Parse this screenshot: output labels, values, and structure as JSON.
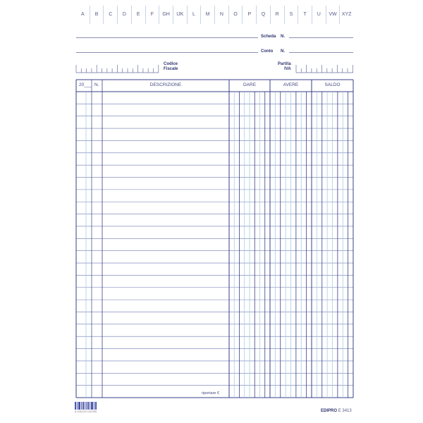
{
  "index_letters": [
    "A",
    "B",
    "C",
    "D",
    "E",
    "F",
    "GH",
    "IJK",
    "L",
    "M",
    "N",
    "O",
    "P",
    "Q",
    "R",
    "S",
    "T",
    "U",
    "VW",
    "XYZ"
  ],
  "fields": {
    "scheda_label": "Scheda",
    "conto_label": "Conto",
    "number_label": "N.",
    "codice_fiscale_label_1": "Codice",
    "codice_fiscale_label_2": "Fiscale",
    "partita_iva_label_1": "Partita",
    "partita_iva_label_2": "IVA"
  },
  "table": {
    "headers": {
      "year": "20___",
      "number": "N.",
      "description": "DESCRIZIONE",
      "debit": "DARE",
      "credit": "AVERE",
      "balance": "SALDO"
    },
    "row_count": 25,
    "footer_label": "riportare €"
  },
  "footer": {
    "barcode_digits": "8 025133 142305",
    "brand": "EDIPRO",
    "code": "E 3413"
  },
  "colors": {
    "ink": "#3b3f86",
    "grid_light": "#9cc6e0",
    "grid_dark": "#3a3f88"
  }
}
